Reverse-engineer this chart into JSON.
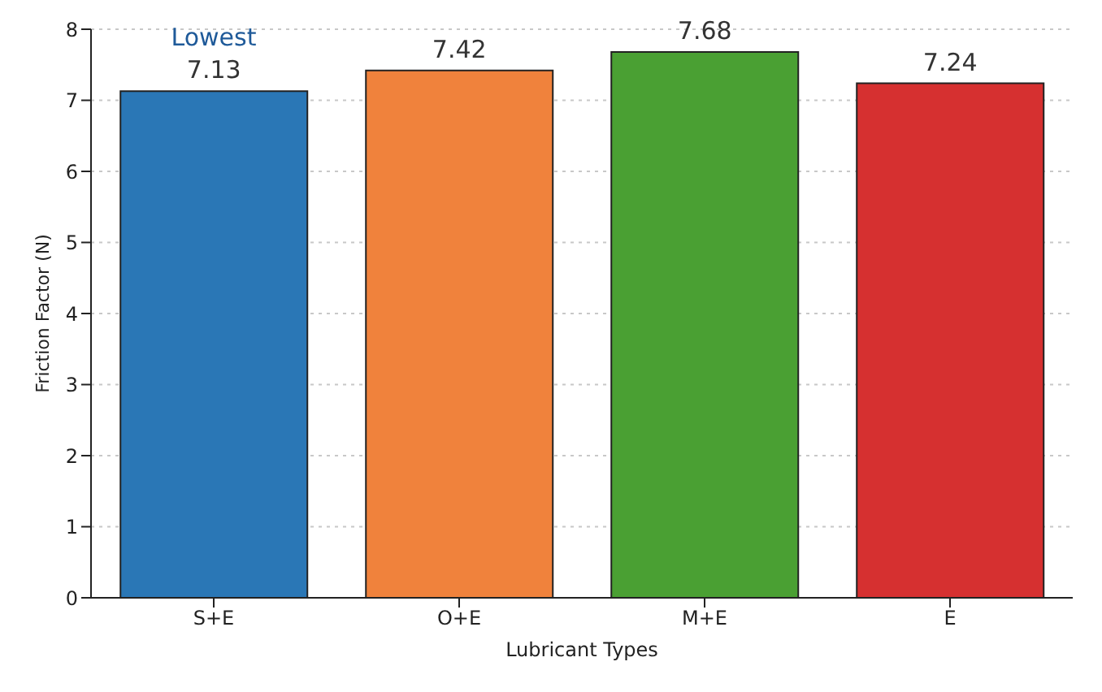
{
  "chart_data": {
    "type": "bar",
    "xlabel": "Lubricant Types",
    "ylabel": "Friction Factor (N)",
    "categories": [
      "S+E",
      "O+E",
      "M+E",
      "E"
    ],
    "values": [
      7.13,
      7.42,
      7.68,
      7.24
    ],
    "colors": [
      "#2a77b6",
      "#f0823c",
      "#4aa033",
      "#d63030"
    ],
    "ylim": [
      0,
      8
    ],
    "yticks": [
      0,
      1,
      2,
      3,
      4,
      5,
      6,
      7,
      8
    ],
    "grid": "y",
    "data_labels": true,
    "annotations": [
      {
        "text": "Lowest",
        "x": "S+E",
        "y": 7.13
      }
    ]
  }
}
